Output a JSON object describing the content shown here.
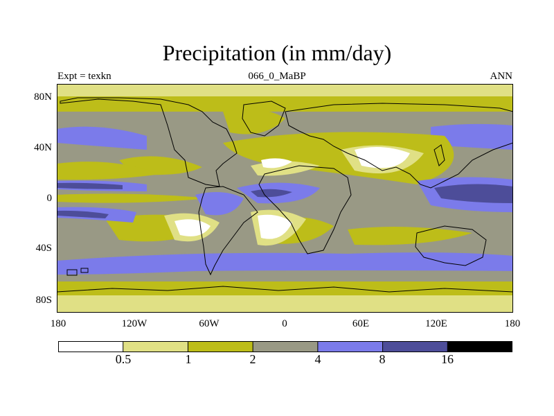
{
  "figure": {
    "title": "Precipitation (in mm/day)",
    "left_label": "Expt = texkn",
    "center_label": "066_0_MaBP",
    "right_label": "ANN"
  },
  "axes": {
    "x_ticks": [
      "180",
      "120W",
      "60W",
      "0",
      "60E",
      "120E",
      "180"
    ],
    "y_ticks": [
      "80N",
      "40N",
      "0",
      "40S",
      "80S"
    ]
  },
  "colorbar": {
    "colors": [
      "#ffffff",
      "#e0e085",
      "#bdbd19",
      "#999985",
      "#7b7bea",
      "#4d4d99",
      "#000000"
    ],
    "labels": [
      "0.5",
      "1",
      "2",
      "4",
      "8",
      "16"
    ]
  },
  "colors": {
    "c0": "#ffffff",
    "c1": "#e0e085",
    "c2": "#bdbd19",
    "c3": "#999985",
    "c4": "#7b7bea",
    "c5": "#4d4d99",
    "coastline": "#000000"
  }
}
